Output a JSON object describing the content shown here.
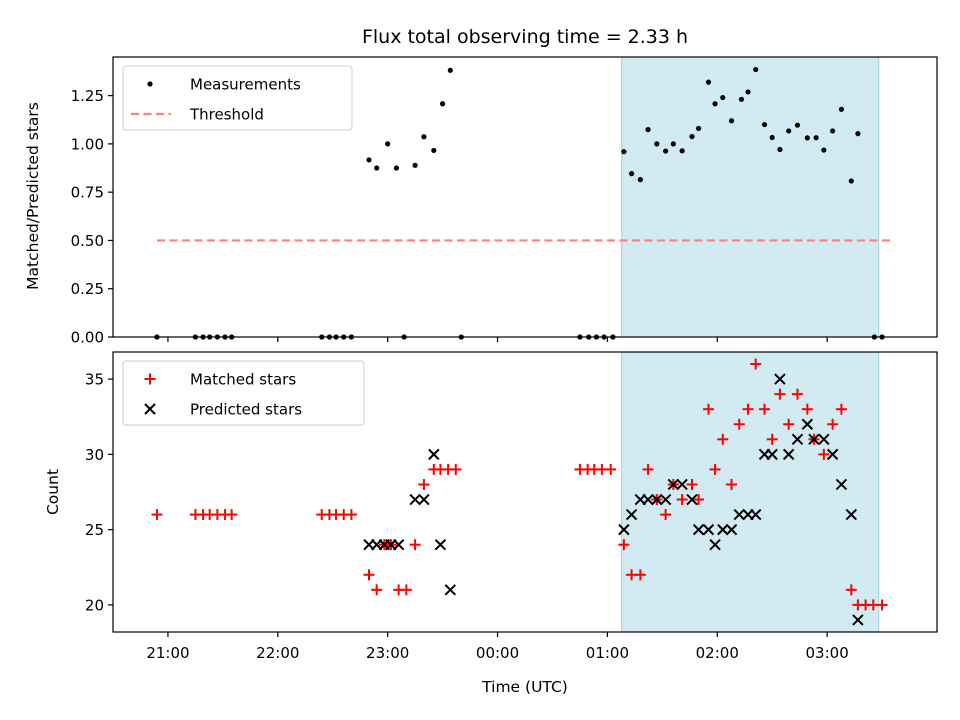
{
  "chart_data": [
    {
      "type": "scatter",
      "title": "Flux total observing time = 2.33 h",
      "ylabel": "Matched/Predicted stars",
      "xlabel": "",
      "xlim": [
        20.5,
        28.0
      ],
      "ylim": [
        0,
        1.45
      ],
      "yticks": [
        0.0,
        0.25,
        0.5,
        0.75,
        1.0,
        1.25
      ],
      "ytick_labels": [
        "0.00",
        "0.25",
        "0.50",
        "0.75",
        "1.00",
        "1.25"
      ],
      "legend_position": "top-left",
      "shaded_region": {
        "x0": 25.13,
        "x1": 27.47,
        "color": "#add8e6"
      },
      "series": [
        {
          "name": "Measurements",
          "marker": "dot",
          "color": "#000000",
          "points": [
            [
              20.9,
              0
            ],
            [
              21.25,
              0
            ],
            [
              21.32,
              0
            ],
            [
              21.38,
              0
            ],
            [
              21.45,
              0
            ],
            [
              21.52,
              0
            ],
            [
              21.58,
              0
            ],
            [
              22.4,
              0
            ],
            [
              22.47,
              0
            ],
            [
              22.53,
              0
            ],
            [
              22.6,
              0
            ],
            [
              22.67,
              0
            ],
            [
              22.83,
              0.917
            ],
            [
              22.9,
              0.875
            ],
            [
              23.0,
              1.0
            ],
            [
              23.08,
              0.875
            ],
            [
              23.15,
              0
            ],
            [
              23.25,
              0.889
            ],
            [
              23.33,
              1.037
            ],
            [
              23.42,
              0.966
            ],
            [
              23.5,
              1.208
            ],
            [
              23.57,
              1.381
            ],
            [
              23.67,
              0
            ],
            [
              24.75,
              0
            ],
            [
              24.83,
              0
            ],
            [
              24.9,
              0
            ],
            [
              24.97,
              0
            ],
            [
              25.05,
              0
            ],
            [
              25.15,
              0.96
            ],
            [
              25.22,
              0.846
            ],
            [
              25.3,
              0.815
            ],
            [
              25.37,
              1.074
            ],
            [
              25.45,
              1.0
            ],
            [
              25.53,
              0.963
            ],
            [
              25.6,
              1.0
            ],
            [
              25.68,
              0.964
            ],
            [
              25.77,
              1.038
            ],
            [
              25.83,
              1.08
            ],
            [
              25.92,
              1.32
            ],
            [
              25.98,
              1.208
            ],
            [
              26.05,
              1.24
            ],
            [
              26.13,
              1.12
            ],
            [
              26.22,
              1.231
            ],
            [
              26.28,
              1.269
            ],
            [
              26.35,
              1.385
            ],
            [
              26.43,
              1.1
            ],
            [
              26.5,
              1.033
            ],
            [
              26.57,
              0.971
            ],
            [
              26.65,
              1.067
            ],
            [
              26.73,
              1.097
            ],
            [
              26.82,
              1.031
            ],
            [
              26.9,
              1.032
            ],
            [
              26.97,
              0.968
            ],
            [
              27.05,
              1.067
            ],
            [
              27.13,
              1.179
            ],
            [
              27.22,
              0.808
            ],
            [
              27.28,
              1.053
            ],
            [
              27.43,
              0
            ],
            [
              27.5,
              0
            ]
          ]
        },
        {
          "name": "Threshold",
          "marker": "dashed-line",
          "color": "#ff7f7f",
          "x": [
            20.9,
            27.6
          ],
          "y": [
            0.5,
            0.5
          ]
        }
      ]
    },
    {
      "type": "scatter",
      "title": "",
      "xlabel": "Time (UTC)",
      "ylabel": "Count",
      "xlim": [
        20.5,
        28.0
      ],
      "ylim": [
        18.2,
        36.8
      ],
      "xticks": [
        21,
        22,
        23,
        24,
        25,
        26,
        27
      ],
      "xtick_labels": [
        "21:00",
        "22:00",
        "23:00",
        "00:00",
        "01:00",
        "02:00",
        "03:00"
      ],
      "yticks": [
        20,
        25,
        30,
        35
      ],
      "ytick_labels": [
        "20",
        "25",
        "30",
        "35"
      ],
      "legend_position": "top-left",
      "shaded_region": {
        "x0": 25.13,
        "x1": 27.47,
        "color": "#add8e6"
      },
      "series": [
        {
          "name": "Matched stars",
          "marker": "plus",
          "color": "#ff0000",
          "points": [
            [
              20.9,
              26
            ],
            [
              21.25,
              26
            ],
            [
              21.32,
              26
            ],
            [
              21.38,
              26
            ],
            [
              21.45,
              26
            ],
            [
              21.52,
              26
            ],
            [
              21.58,
              26
            ],
            [
              22.4,
              26
            ],
            [
              22.47,
              26
            ],
            [
              22.53,
              26
            ],
            [
              22.6,
              26
            ],
            [
              22.67,
              26
            ],
            [
              22.83,
              22
            ],
            [
              22.9,
              21
            ],
            [
              22.97,
              24
            ],
            [
              23.03,
              24
            ],
            [
              23.1,
              21
            ],
            [
              23.17,
              21
            ],
            [
              23.25,
              24
            ],
            [
              23.33,
              28
            ],
            [
              23.42,
              29
            ],
            [
              23.48,
              29
            ],
            [
              23.55,
              29
            ],
            [
              23.62,
              29
            ],
            [
              24.75,
              29
            ],
            [
              24.82,
              29
            ],
            [
              24.88,
              29
            ],
            [
              24.95,
              29
            ],
            [
              25.03,
              29
            ],
            [
              25.15,
              24
            ],
            [
              25.22,
              22
            ],
            [
              25.3,
              22
            ],
            [
              25.37,
              29
            ],
            [
              25.45,
              27
            ],
            [
              25.53,
              26
            ],
            [
              25.6,
              28
            ],
            [
              25.68,
              27
            ],
            [
              25.77,
              28
            ],
            [
              25.83,
              27
            ],
            [
              25.92,
              33
            ],
            [
              25.98,
              29
            ],
            [
              26.05,
              31
            ],
            [
              26.13,
              28
            ],
            [
              26.2,
              32
            ],
            [
              26.28,
              33
            ],
            [
              26.35,
              36
            ],
            [
              26.43,
              33
            ],
            [
              26.5,
              31
            ],
            [
              26.57,
              34
            ],
            [
              26.65,
              32
            ],
            [
              26.73,
              34
            ],
            [
              26.82,
              33
            ],
            [
              26.88,
              31
            ],
            [
              26.97,
              30
            ],
            [
              27.05,
              32
            ],
            [
              27.13,
              33
            ],
            [
              27.22,
              21
            ],
            [
              27.28,
              20
            ],
            [
              27.35,
              20
            ],
            [
              27.42,
              20
            ],
            [
              27.5,
              20
            ]
          ]
        },
        {
          "name": "Predicted stars",
          "marker": "x",
          "color": "#000000",
          "points": [
            [
              22.83,
              24
            ],
            [
              22.9,
              24
            ],
            [
              22.97,
              24
            ],
            [
              23.03,
              24
            ],
            [
              23.1,
              24
            ],
            [
              23.25,
              27
            ],
            [
              23.33,
              27
            ],
            [
              23.42,
              30
            ],
            [
              23.48,
              24
            ],
            [
              23.57,
              21
            ],
            [
              25.15,
              25
            ],
            [
              25.22,
              26
            ],
            [
              25.3,
              27
            ],
            [
              25.37,
              27
            ],
            [
              25.45,
              27
            ],
            [
              25.53,
              27
            ],
            [
              25.6,
              28
            ],
            [
              25.68,
              28
            ],
            [
              25.77,
              27
            ],
            [
              25.83,
              25
            ],
            [
              25.92,
              25
            ],
            [
              25.98,
              24
            ],
            [
              26.05,
              25
            ],
            [
              26.13,
              25
            ],
            [
              26.2,
              26
            ],
            [
              26.28,
              26
            ],
            [
              26.35,
              26
            ],
            [
              26.43,
              30
            ],
            [
              26.5,
              30
            ],
            [
              26.57,
              35
            ],
            [
              26.65,
              30
            ],
            [
              26.73,
              31
            ],
            [
              26.82,
              32
            ],
            [
              26.88,
              31
            ],
            [
              26.97,
              31
            ],
            [
              27.05,
              30
            ],
            [
              27.13,
              28
            ],
            [
              27.22,
              26
            ],
            [
              27.28,
              19
            ]
          ]
        }
      ]
    }
  ]
}
